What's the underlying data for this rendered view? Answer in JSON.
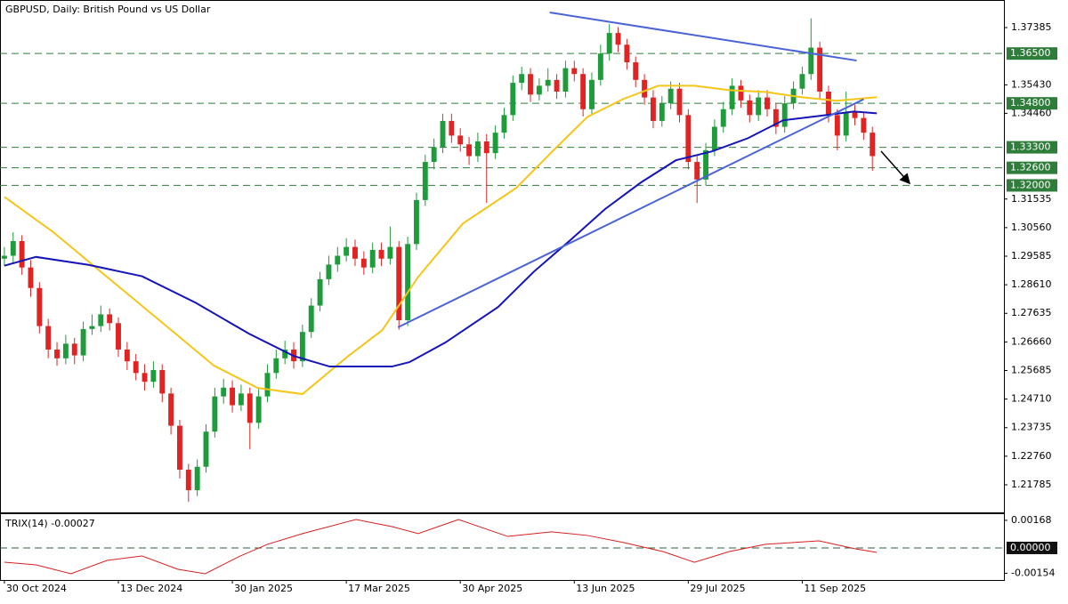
{
  "chart_data": {
    "type": "candlestick",
    "title": "GBPUSD, Daily:  British Pound vs US Dollar",
    "up_color": "#1e9b3b",
    "down_color": "#e02424",
    "open": [
      1.295,
      1.296,
      1.301,
      1.292,
      1.285,
      1.272,
      1.264,
      1.261,
      1.266,
      1.262,
      1.271,
      1.272,
      1.276,
      1.273,
      1.264,
      1.26,
      1.256,
      1.253,
      1.257,
      1.249,
      1.238,
      1.223,
      1.216,
      1.224,
      1.236,
      1.248,
      1.251,
      1.245,
      1.249,
      1.239,
      1.248,
      1.256,
      1.261,
      1.264,
      1.26,
      1.27,
      1.279,
      1.288,
      1.293,
      1.296,
      1.299,
      1.295,
      1.292,
      1.298,
      1.295,
      1.299,
      1.274,
      1.3,
      1.315,
      1.328,
      1.333,
      1.342,
      1.337,
      1.334,
      1.33,
      1.335,
      1.331,
      1.338,
      1.344,
      1.355,
      1.358,
      1.351,
      1.354,
      1.356,
      1.352,
      1.36,
      1.358,
      1.346,
      1.356,
      1.365,
      1.372,
      1.368,
      1.362,
      1.356,
      1.35,
      1.342,
      1.348,
      1.353,
      1.344,
      1.328,
      1.322,
      1.332,
      1.34,
      1.346,
      1.354,
      1.349,
      1.344,
      1.35,
      1.346,
      1.34,
      1.348,
      1.353,
      1.358,
      1.367,
      1.352,
      1.344,
      1.337,
      1.345,
      1.343,
      1.338
    ],
    "high": [
      1.299,
      1.304,
      1.303,
      1.2945,
      1.287,
      1.2745,
      1.2665,
      1.269,
      1.268,
      1.2735,
      1.276,
      1.279,
      1.278,
      1.275,
      1.2665,
      1.2625,
      1.259,
      1.26,
      1.259,
      1.251,
      1.24,
      1.225,
      1.2265,
      1.2385,
      1.251,
      1.254,
      1.2535,
      1.252,
      1.251,
      1.2505,
      1.259,
      1.264,
      1.267,
      1.2665,
      1.2725,
      1.2815,
      1.2905,
      1.296,
      1.299,
      1.302,
      1.3015,
      1.2975,
      1.3005,
      1.3005,
      1.306,
      1.301,
      1.3025,
      1.3175,
      1.3305,
      1.336,
      1.3445,
      1.3445,
      1.3395,
      1.3365,
      1.338,
      1.3375,
      1.3405,
      1.3465,
      1.3575,
      1.3605,
      1.36,
      1.3565,
      1.36,
      1.358,
      1.3625,
      1.3625,
      1.36,
      1.3585,
      1.368,
      1.375,
      1.374,
      1.37,
      1.364,
      1.358,
      1.3525,
      1.3505,
      1.3555,
      1.355,
      1.346,
      1.33,
      1.3345,
      1.3425,
      1.3485,
      1.3565,
      1.356,
      1.351,
      1.3525,
      1.3525,
      1.348,
      1.3505,
      1.3555,
      1.3605,
      1.377,
      1.369,
      1.354,
      1.346,
      1.352,
      1.3475,
      1.345,
      1.34
    ],
    "low": [
      1.2925,
      1.2935,
      1.2895,
      1.282,
      1.2695,
      1.261,
      1.2585,
      1.259,
      1.259,
      1.26,
      1.269,
      1.27,
      1.2705,
      1.2615,
      1.257,
      1.2535,
      1.25,
      1.251,
      1.246,
      1.235,
      1.22,
      1.212,
      1.214,
      1.222,
      1.234,
      1.2455,
      1.2425,
      1.243,
      1.23,
      1.237,
      1.246,
      1.254,
      1.259,
      1.2575,
      1.258,
      1.268,
      1.277,
      1.286,
      1.2905,
      1.294,
      1.2925,
      1.2895,
      1.29,
      1.2925,
      1.293,
      1.2708,
      1.272,
      1.298,
      1.313,
      1.3255,
      1.331,
      1.3345,
      1.3315,
      1.327,
      1.328,
      1.314,
      1.329,
      1.336,
      1.342,
      1.3525,
      1.3485,
      1.349,
      1.352,
      1.3495,
      1.35,
      1.3555,
      1.3435,
      1.344,
      1.354,
      1.3625,
      1.3655,
      1.3595,
      1.3535,
      1.3475,
      1.3395,
      1.34,
      1.346,
      1.3415,
      1.3255,
      1.314,
      1.32,
      1.33,
      1.338,
      1.344,
      1.3465,
      1.3415,
      1.342,
      1.3435,
      1.3375,
      1.338,
      1.346,
      1.351,
      1.356,
      1.3495,
      1.3415,
      1.332,
      1.335,
      1.3405,
      1.3355,
      1.325
    ],
    "close": [
      1.296,
      1.301,
      1.292,
      1.285,
      1.272,
      1.264,
      1.261,
      1.266,
      1.262,
      1.271,
      1.272,
      1.276,
      1.273,
      1.264,
      1.26,
      1.256,
      1.253,
      1.257,
      1.249,
      1.238,
      1.223,
      1.216,
      1.224,
      1.236,
      1.248,
      1.251,
      1.245,
      1.249,
      1.239,
      1.248,
      1.256,
      1.261,
      1.264,
      1.26,
      1.27,
      1.279,
      1.288,
      1.293,
      1.296,
      1.299,
      1.295,
      1.292,
      1.298,
      1.295,
      1.299,
      1.274,
      1.3,
      1.315,
      1.328,
      1.333,
      1.342,
      1.337,
      1.334,
      1.33,
      1.335,
      1.331,
      1.338,
      1.344,
      1.355,
      1.358,
      1.351,
      1.354,
      1.356,
      1.352,
      1.36,
      1.358,
      1.346,
      1.356,
      1.365,
      1.372,
      1.368,
      1.362,
      1.356,
      1.35,
      1.342,
      1.348,
      1.353,
      1.344,
      1.328,
      1.322,
      1.332,
      1.34,
      1.346,
      1.354,
      1.349,
      1.344,
      1.35,
      1.346,
      1.34,
      1.348,
      1.353,
      1.358,
      1.367,
      1.352,
      1.344,
      1.337,
      1.345,
      1.343,
      1.338,
      1.33
    ],
    "xlim": [
      -0.5,
      114
    ],
    "xticks": [
      {
        "value": 0,
        "label": "30 Oct 2024"
      },
      {
        "value": 13,
        "label": "13 Dec 2024"
      },
      {
        "value": 26,
        "label": "30 Jan 2025"
      },
      {
        "value": 39,
        "label": "17 Mar 2025"
      },
      {
        "value": 52,
        "label": "30 Apr 2025"
      },
      {
        "value": 65,
        "label": "13 Jun 2025"
      },
      {
        "value": 78,
        "label": "29 Jul 2025"
      },
      {
        "value": 91,
        "label": "11 Sep 2025"
      }
    ],
    "ylim": [
      1.20844,
      1.38326
    ],
    "yticks": [
      1.37385,
      {
        "value": 1.3543,
        "label": "1.35430"
      },
      {
        "value": 1.3446,
        "label": "1.34460"
      },
      1.31535,
      {
        "value": 1.3056,
        "label": "1.30560"
      },
      1.29585,
      {
        "value": 1.2861,
        "label": "1.28610"
      },
      1.27635,
      {
        "value": 1.2666,
        "label": "1.26660"
      },
      1.25685,
      {
        "value": 1.2471,
        "label": "1.24710"
      },
      1.23735,
      {
        "value": 1.2276,
        "label": "1.22760"
      },
      1.21785
    ],
    "levels": [
      {
        "value": 1.365,
        "label": "1.36500"
      },
      {
        "value": 1.348,
        "label": "1.34800"
      },
      {
        "value": 1.333,
        "label": "1.33300"
      },
      {
        "value": 1.326,
        "label": "1.32600"
      },
      {
        "value": 1.32,
        "label": "1.32000"
      }
    ],
    "level_color": "#2f7d3a",
    "moving_averages": [
      {
        "color": "#f5c518",
        "x": [
          0,
          5.6,
          11.7,
          17.8,
          23.9,
          28.9,
          34,
          39.1,
          43.1,
          47.2,
          52.3,
          58.4,
          62.4,
          66.5,
          70.6,
          74.6,
          78.7,
          82.7,
          86.8,
          90.9,
          94.9,
          99.5
        ],
        "values": [
          1.3161,
          1.304,
          1.2888,
          1.2737,
          1.2585,
          1.2509,
          1.2488,
          1.2615,
          1.2706,
          1.2888,
          1.307,
          1.3192,
          1.3313,
          1.3434,
          1.3495,
          1.354,
          1.354,
          1.3525,
          1.3519,
          1.3501,
          1.3489,
          1.3501
        ]
      },
      {
        "color": "#1414b8",
        "x": [
          0,
          3.6,
          9.6,
          15.7,
          21.8,
          27.9,
          33,
          37.1,
          44.2,
          46.2,
          50.3,
          56.3,
          60.4,
          64.5,
          68.5,
          72.6,
          76.6,
          80.7,
          84.8,
          88.8,
          92.9,
          96.9,
          99.5
        ],
        "values": [
          1.2926,
          1.2956,
          1.2929,
          1.289,
          1.28,
          1.2694,
          1.2618,
          1.2582,
          1.2582,
          1.2597,
          1.2664,
          1.2785,
          1.2906,
          1.3012,
          1.3119,
          1.321,
          1.3286,
          1.3316,
          1.3361,
          1.3422,
          1.3437,
          1.3452,
          1.3446
        ]
      }
    ],
    "trendlines": [
      {
        "color": "#4a63d6",
        "x": [
          62.2,
          97.2
        ],
        "values": [
          1.379,
          1.3626
        ]
      },
      {
        "color": "#4a63d6",
        "x": [
          44.9,
          98
        ],
        "values": [
          1.2716,
          1.3494
        ]
      }
    ],
    "indicator": {
      "name": "TRIX(14)",
      "current": -0.00027,
      "color": "#d42020",
      "ylim": [
        -0.00195,
        0.00211
      ],
      "yticks": [
        0.00168,
        -0.00154
      ],
      "level": {
        "value": 0,
        "label": "0.00000"
      },
      "x": [
        0,
        3.6,
        7.6,
        11.7,
        15.7,
        19.8,
        22.9,
        26.9,
        30,
        34,
        40.1,
        44.2,
        47.2,
        51.8,
        57.4,
        62.4,
        66.5,
        70.6,
        75.1,
        78.7,
        82.7,
        86.8,
        92.9,
        97,
        99.5
      ],
      "values": [
        -0.00087,
        -0.00103,
        -0.00157,
        -0.00076,
        -0.00049,
        -0.0013,
        -0.00157,
        -0.00049,
        0.00022,
        0.00087,
        0.00173,
        0.0013,
        0.00087,
        0.00173,
        0.0007,
        0.00098,
        0.00076,
        0.00033,
        -0.00022,
        -0.00087,
        -0.00022,
        0.00022,
        0.00043,
        -5e-05,
        -0.00027
      ]
    }
  }
}
